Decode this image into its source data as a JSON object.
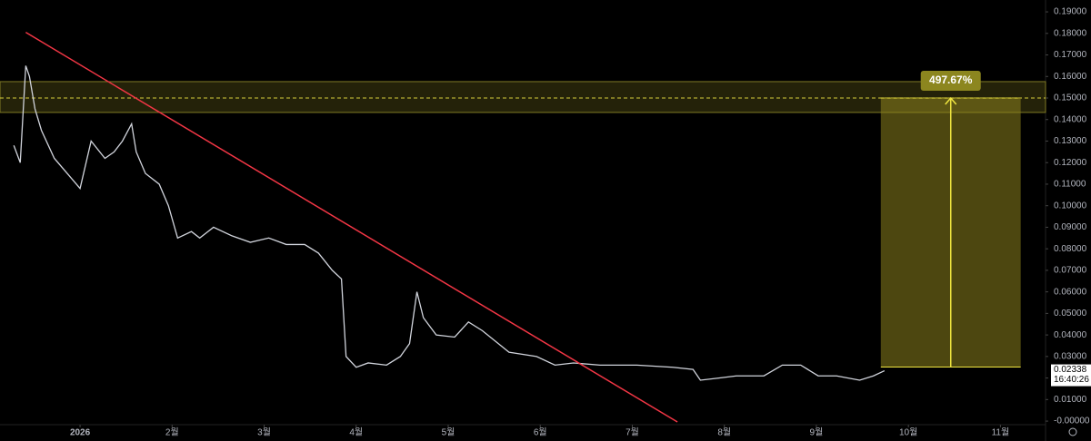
{
  "chart_data": {
    "type": "line",
    "color": "#d1d4dc",
    "x": [
      -0.72,
      -0.65,
      -0.59,
      -0.55,
      -0.49,
      -0.42,
      -0.28,
      -0.08,
      0,
      0.12,
      0.27,
      0.37,
      0.46,
      0.56,
      0.61,
      0.71,
      0.86,
      0.96,
      1.06,
      1.21,
      1.3,
      1.45,
      1.65,
      1.85,
      2.05,
      2.24,
      2.44,
      2.59,
      2.74,
      2.84,
      2.89,
      3.0,
      3.13,
      3.33,
      3.48,
      3.58,
      3.66,
      3.73,
      3.87,
      4.07,
      4.22,
      4.37,
      4.66,
      4.96,
      5.16,
      5.36,
      5.65,
      6.05,
      6.44,
      6.66,
      6.74,
      6.94,
      7.13,
      7.43,
      7.63,
      7.83,
      8.02,
      8.22,
      8.47,
      8.62,
      8.74
    ],
    "values": [
      0.128,
      0.12,
      0.165,
      0.16,
      0.145,
      0.135,
      0.122,
      0.112,
      0.108,
      0.13,
      0.122,
      0.125,
      0.13,
      0.138,
      0.125,
      0.115,
      0.11,
      0.1,
      0.085,
      0.088,
      0.085,
      0.09,
      0.086,
      0.083,
      0.085,
      0.082,
      0.082,
      0.078,
      0.07,
      0.066,
      0.03,
      0.025,
      0.027,
      0.026,
      0.03,
      0.036,
      0.06,
      0.048,
      0.04,
      0.039,
      0.046,
      0.042,
      0.032,
      0.03,
      0.026,
      0.027,
      0.026,
      0.026,
      0.025,
      0.024,
      0.019,
      0.02,
      0.021,
      0.021,
      0.026,
      0.026,
      0.021,
      0.021,
      0.019,
      0.021,
      0.02338
    ],
    "xlim": [
      -0.87,
      10.49
    ],
    "xticks": [
      {
        "value": 0,
        "label": "2026"
      },
      {
        "value": 1,
        "label": "2월"
      },
      {
        "value": 2,
        "label": "3월"
      },
      {
        "value": 3,
        "label": "4월"
      },
      {
        "value": 4,
        "label": "5월"
      },
      {
        "value": 5,
        "label": "6월"
      },
      {
        "value": 6,
        "label": "7월"
      },
      {
        "value": 7,
        "label": "8월"
      },
      {
        "value": 8,
        "label": "9월"
      },
      {
        "value": 9,
        "label": "10월"
      },
      {
        "value": 10,
        "label": "11월"
      }
    ],
    "ylim": [
      -0.0025,
      0.1955
    ],
    "yticks": [
      {
        "value": 0,
        "label": "-0.00000"
      },
      {
        "value": 0.01,
        "label": "0.01000"
      },
      {
        "value": 0.02,
        "label": "0.02000"
      },
      {
        "value": 0.03,
        "label": "0.03000"
      },
      {
        "value": 0.04,
        "label": "0.04000"
      },
      {
        "value": 0.05,
        "label": "0.05000"
      },
      {
        "value": 0.06,
        "label": "0.06000"
      },
      {
        "value": 0.07,
        "label": "0.07000"
      },
      {
        "value": 0.08,
        "label": "0.08000"
      },
      {
        "value": 0.09,
        "label": "0.09000"
      },
      {
        "value": 0.1,
        "label": "0.10000"
      },
      {
        "value": 0.11,
        "label": "0.11000"
      },
      {
        "value": 0.12,
        "label": "0.12000"
      },
      {
        "value": 0.13,
        "label": "0.13000"
      },
      {
        "value": 0.14,
        "label": "0.14000"
      },
      {
        "value": 0.15,
        "label": "0.15000"
      },
      {
        "value": 0.16,
        "label": "0.16000"
      },
      {
        "value": 0.17,
        "label": "0.17000"
      },
      {
        "value": 0.18,
        "label": "0.18000"
      },
      {
        "value": 0.19,
        "label": "0.19000"
      }
    ],
    "trendline": {
      "x": [
        -0.59,
        6.49
      ],
      "y": [
        0.1805,
        -0.0004
      ],
      "color": "#f23645"
    },
    "zone": [
      0.1433,
      0.1576
    ],
    "zone_line": 0.15,
    "position": {
      "x": [
        8.7,
        10.22
      ],
      "entry": 0.0251,
      "target": 0.15,
      "arrow_x": 9.46,
      "label": "497.67%"
    },
    "price_label": "0.02338",
    "countdown": "16:40:26"
  }
}
